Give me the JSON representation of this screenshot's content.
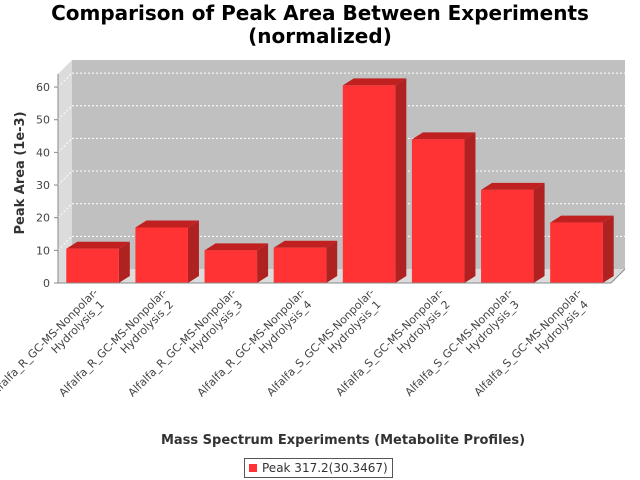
{
  "chart_data": {
    "type": "bar",
    "title_lines": [
      "Comparison of Peak Area Between Experiments",
      "(normalized)"
    ],
    "xlabel": "Mass Spectrum Experiments (Metabolite Profiles)",
    "ylabel": "Peak Area (1e-3)",
    "ylim": [
      0,
      64
    ],
    "yticks": [
      0,
      10,
      20,
      30,
      40,
      50,
      60
    ],
    "grid": true,
    "legend_position": "bottom",
    "categories": [
      [
        "Alfalfa_R_GC-MS-Nonpolar-",
        "Hydrolysis_1"
      ],
      [
        "Alfalfa_R_GC-MS-Nonpolar-",
        "Hydrolysis_2"
      ],
      [
        "Alfalfa_R_GC-MS-Nonpolar-",
        "Hydrolysis_3"
      ],
      [
        "Alfalfa_R_GC-MS-Nonpolar-",
        "Hydrolysis_4"
      ],
      [
        "Alfalfa_S_GC-MS-Nonpolar-",
        "Hydrolysis_1"
      ],
      [
        "Alfalfa_S_GC-MS-Nonpolar-",
        "Hydrolysis_2"
      ],
      [
        "Alfalfa_S_GC-MS-Nonpolar-",
        "Hydrolysis_3"
      ],
      [
        "Alfalfa_S_GC-MS-Nonpolar-",
        "Hydrolysis_4"
      ]
    ],
    "series": [
      {
        "name": "Peak 317.2(30.3467)",
        "color": "#ff3333",
        "values": [
          10.5,
          17.0,
          10.0,
          10.8,
          60.5,
          44.0,
          28.5,
          18.5
        ]
      }
    ],
    "colors": {
      "plot_background": "#c0c0c0",
      "plot_side": "#dcdcdc",
      "gridline": "#ffffff",
      "bar_front": "#ff3333",
      "bar_top": "#c02020",
      "bar_side": "#b02222"
    }
  }
}
